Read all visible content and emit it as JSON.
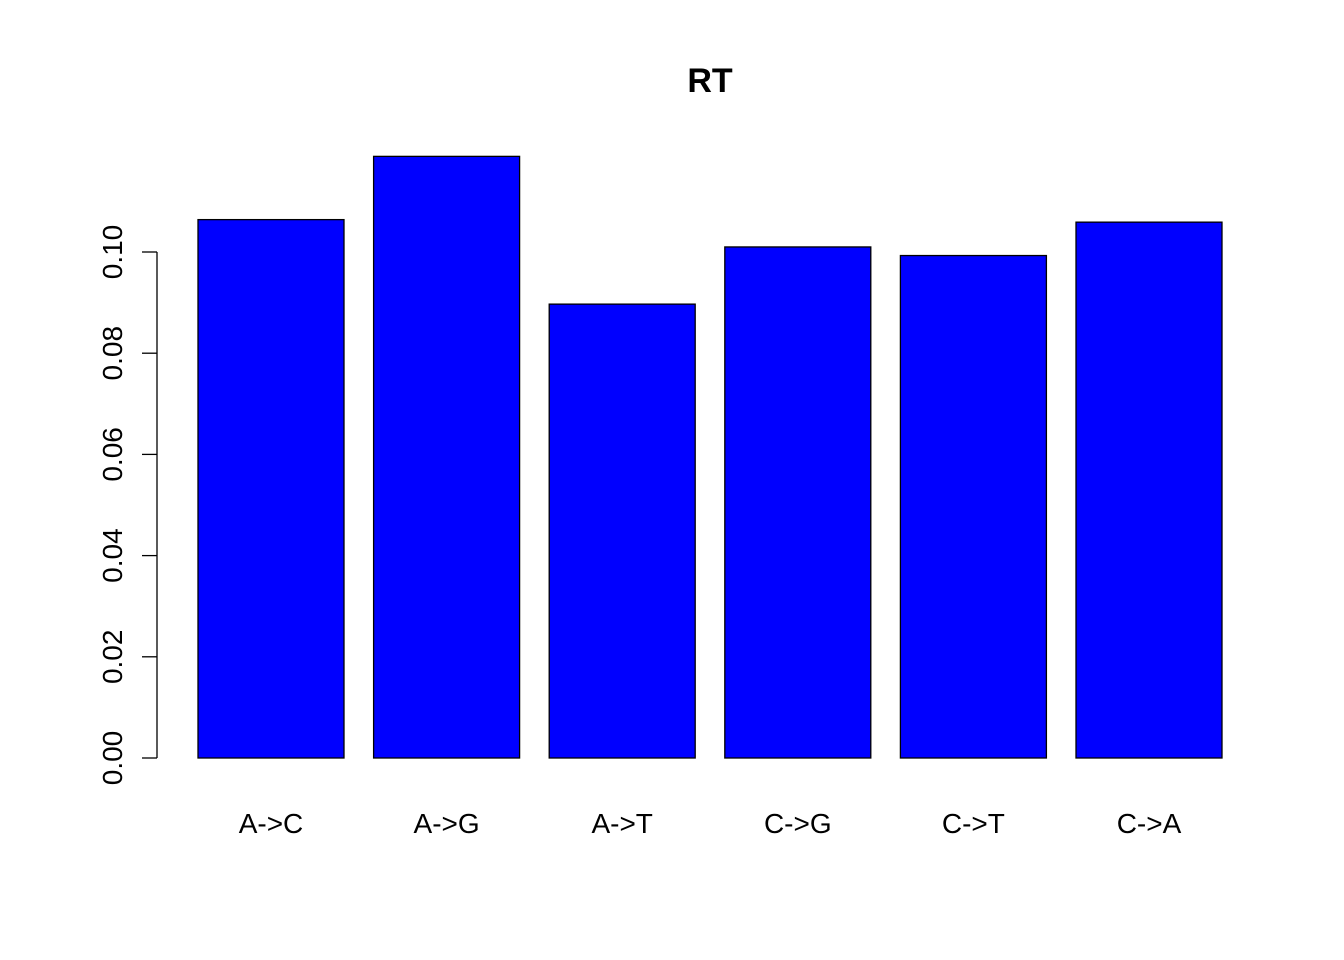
{
  "chart_data": {
    "type": "bar",
    "title": "RT",
    "xlabel": "",
    "ylabel": "",
    "categories": [
      "A->C",
      "A->G",
      "A->T",
      "C->G",
      "C->T",
      "C->A"
    ],
    "values": [
      0.1064,
      0.1189,
      0.0897,
      0.101,
      0.0993,
      0.1059
    ],
    "ylim": [
      0,
      0.12
    ],
    "yticks": [
      0.0,
      0.02,
      0.04,
      0.06,
      0.08,
      0.1
    ],
    "ytick_labels": [
      "0.00",
      "0.02",
      "0.04",
      "0.06",
      "0.08",
      "0.10"
    ],
    "bar_color": "#0000ff",
    "grid": false,
    "legend": "none"
  }
}
